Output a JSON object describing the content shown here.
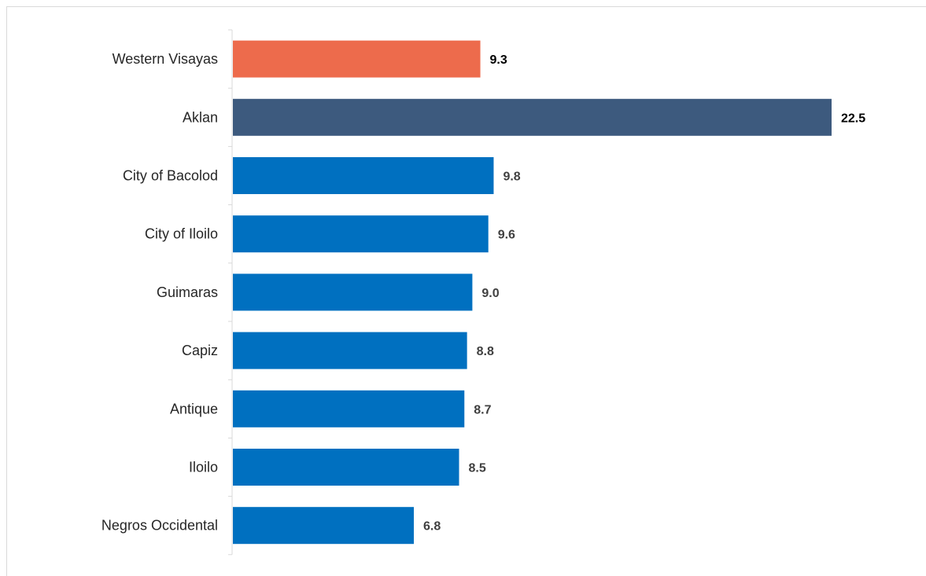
{
  "chart_data": {
    "type": "bar",
    "orientation": "horizontal",
    "categories": [
      "Western Visayas",
      "Aklan",
      "City of Bacolod",
      "City of Iloilo",
      "Guimaras",
      "Capiz",
      "Antique",
      "Iloilo",
      "Negros Occidental"
    ],
    "values": [
      9.3,
      22.5,
      9.8,
      9.6,
      9.0,
      8.8,
      8.7,
      8.5,
      6.8
    ],
    "value_labels": [
      "9.3",
      "22.5",
      "9.8",
      "9.6",
      "9.0",
      "8.8",
      "8.7",
      "8.5",
      "6.8"
    ],
    "bar_colors": [
      "#ed6b4c",
      "#3d5a7e",
      "#0070c0",
      "#0070c0",
      "#0070c0",
      "#0070c0",
      "#0070c0",
      "#0070c0",
      "#0070c0"
    ],
    "label_colors": [
      "#000000",
      "#000000",
      "#404040",
      "#404040",
      "#404040",
      "#404040",
      "#404040",
      "#404040",
      "#404040"
    ],
    "xlim": [
      0,
      22.5
    ],
    "grid": false,
    "legend": "none"
  }
}
